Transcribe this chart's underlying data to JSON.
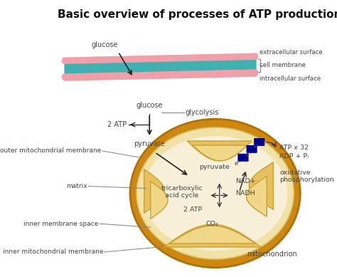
{
  "title": "Basic overview of processes of ATP production",
  "bg_color": "#ffffff",
  "title_fontsize": 11,
  "title_fontweight": "bold",
  "labels": {
    "extracellular_surface": "extracellular surface",
    "cell_membrane": "cell membrane",
    "intracellular_surface": "intracellular surface",
    "glucose_top": "glucose",
    "glucose_mid": "glucose",
    "glycolysis": "glycolysis",
    "atp_2_top": "2 ATP",
    "pyruvate_top": "pyruvate",
    "outer_membrane": "outer mitochondrial membrane",
    "matrix": "matrix",
    "inner_space": "inner membrane space",
    "inner_membrane": "inner mitochondrial membrane",
    "pyruvate_inner": "pyruvate",
    "tca_cycle": "tricarboxylic\nacid cycle",
    "nad_plus": "NAD+",
    "nadh": "NADH",
    "atp_2_inner": "2 ATP",
    "co2": "CO₂",
    "e_minus": "e⁻",
    "atp_32": "ATP x 32",
    "adp_pi": "ADP + Pᵢ",
    "oxidative_phosphorylation": "oxidative\nphosphorylation",
    "mitochondrion": "mitochondrion"
  },
  "colors": {
    "membrane_teal": "#40b0b0",
    "membrane_pink": "#f0a0a8",
    "mito_outer": "#d08818",
    "mito_inner_fill": "#f5e8c0",
    "cristae_color": "#e8c060",
    "cristae_edge": "#c8a030",
    "arrow_color": "#333333",
    "electron_block": "#00008b",
    "label_color": "#444444",
    "line_color": "#888888"
  }
}
